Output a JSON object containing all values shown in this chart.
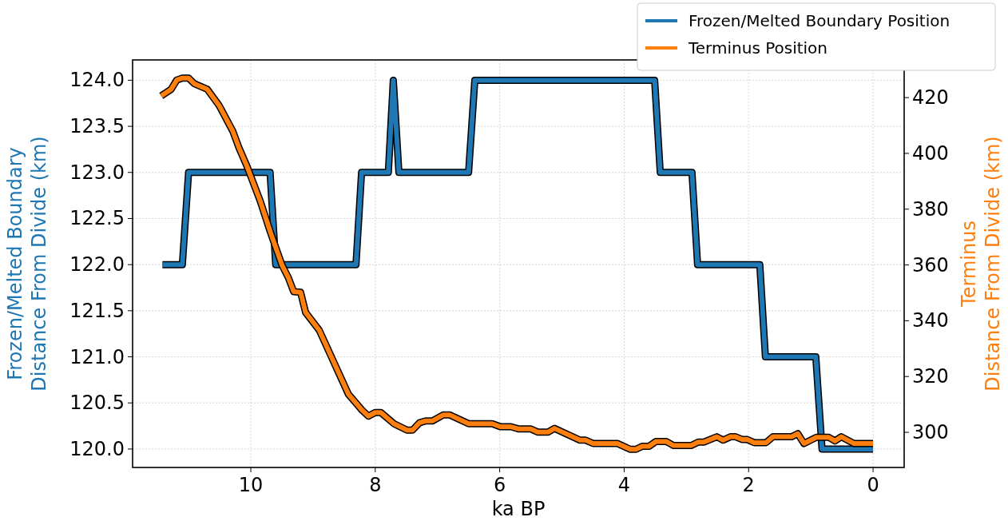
{
  "chart_data": {
    "type": "line",
    "xlabel": "ka BP",
    "ylabel": "Frozen/Melted Boundary\nDistance From Divide (km)",
    "y2label": "Terminus\nDistance From Divide (km)",
    "xlim": [
      11.9,
      -0.5
    ],
    "xticks": [
      10,
      8,
      6,
      4,
      2,
      0
    ],
    "ylim": [
      119.8,
      124.22
    ],
    "yticks": [
      {
        "value": 120,
        "label": "120.0"
      },
      {
        "value": 120.5,
        "label": "120.5"
      },
      {
        "value": 121,
        "label": "121.0"
      },
      {
        "value": 121.5,
        "label": "121.5"
      },
      {
        "value": 122,
        "label": "122.0"
      },
      {
        "value": 122.5,
        "label": "122.5"
      },
      {
        "value": 123,
        "label": "123.0"
      },
      {
        "value": 123.5,
        "label": "123.5"
      },
      {
        "value": 124,
        "label": "124.0"
      }
    ],
    "y2lim": [
      287.4,
      433.5
    ],
    "y2ticks": [
      300,
      320,
      340,
      360,
      380,
      400,
      420
    ],
    "grid": true,
    "legend": "top right",
    "line_style": "solid",
    "series": [
      {
        "name": "Frozen/Melted Boundary Position",
        "color": "#1f77b4",
        "x": [
          11.42,
          11.1,
          11.0,
          9.69,
          9.6,
          8.31,
          8.22,
          7.79,
          7.71,
          7.62,
          6.5,
          6.4,
          3.51,
          3.42,
          2.91,
          2.82,
          1.82,
          1.73,
          0.92,
          0.82,
          0
        ],
        "values": [
          122,
          122,
          123,
          123,
          122,
          122,
          123,
          123,
          124,
          123,
          123,
          124,
          124,
          123,
          123,
          122,
          122,
          121,
          121,
          120,
          120
        ]
      },
      {
        "name": "Terminus Position",
        "color": "#ff7f0e",
        "axis": "y2",
        "x": [
          11.44,
          11.28,
          11.19,
          11.1,
          11.0,
          10.91,
          10.7,
          10.51,
          10.29,
          10.19,
          10.06,
          9.85,
          9.68,
          9.5,
          9.4,
          9.31,
          9.2,
          9.12,
          8.9,
          8.43,
          8.21,
          8.11,
          8.0,
          7.91,
          7.7,
          7.49,
          7.4,
          7.29,
          7.19,
          7.08,
          6.91,
          6.8,
          6.5,
          6.12,
          5.99,
          5.82,
          5.69,
          5.5,
          5.39,
          5.22,
          5.12,
          4.71,
          4.62,
          4.5,
          4.11,
          3.9,
          3.81,
          3.71,
          3.6,
          3.49,
          3.32,
          3.21,
          2.92,
          2.81,
          2.72,
          2.51,
          2.41,
          2.29,
          2.21,
          2.1,
          2.02,
          1.91,
          1.72,
          1.61,
          1.31,
          1.21,
          1.11,
          0.91,
          0.71,
          0.61,
          0.51,
          0.31,
          0
        ],
        "values": [
          420.6,
          423,
          426.3,
          427,
          427,
          425,
          423,
          417.2,
          408,
          402,
          395.3,
          383,
          371.4,
          360,
          355.6,
          350.4,
          350.2,
          343,
          336.6,
          313.6,
          307.9,
          305.8,
          307.1,
          307.1,
          303.1,
          300.8,
          300.8,
          303.4,
          304.1,
          304.1,
          306.2,
          306.2,
          303.1,
          303.1,
          302,
          302,
          301.2,
          301.2,
          300.1,
          300.1,
          301.4,
          297.2,
          297.2,
          296,
          296,
          293.9,
          293.9,
          295,
          295,
          296.7,
          296.7,
          295.3,
          295.3,
          296.5,
          296.5,
          298.4,
          297.2,
          298.4,
          298.4,
          297.4,
          297.4,
          296.3,
          296.3,
          298.4,
          298.4,
          299.5,
          296,
          298.2,
          298.2,
          296.9,
          298.4,
          296,
          296
        ]
      }
    ]
  }
}
